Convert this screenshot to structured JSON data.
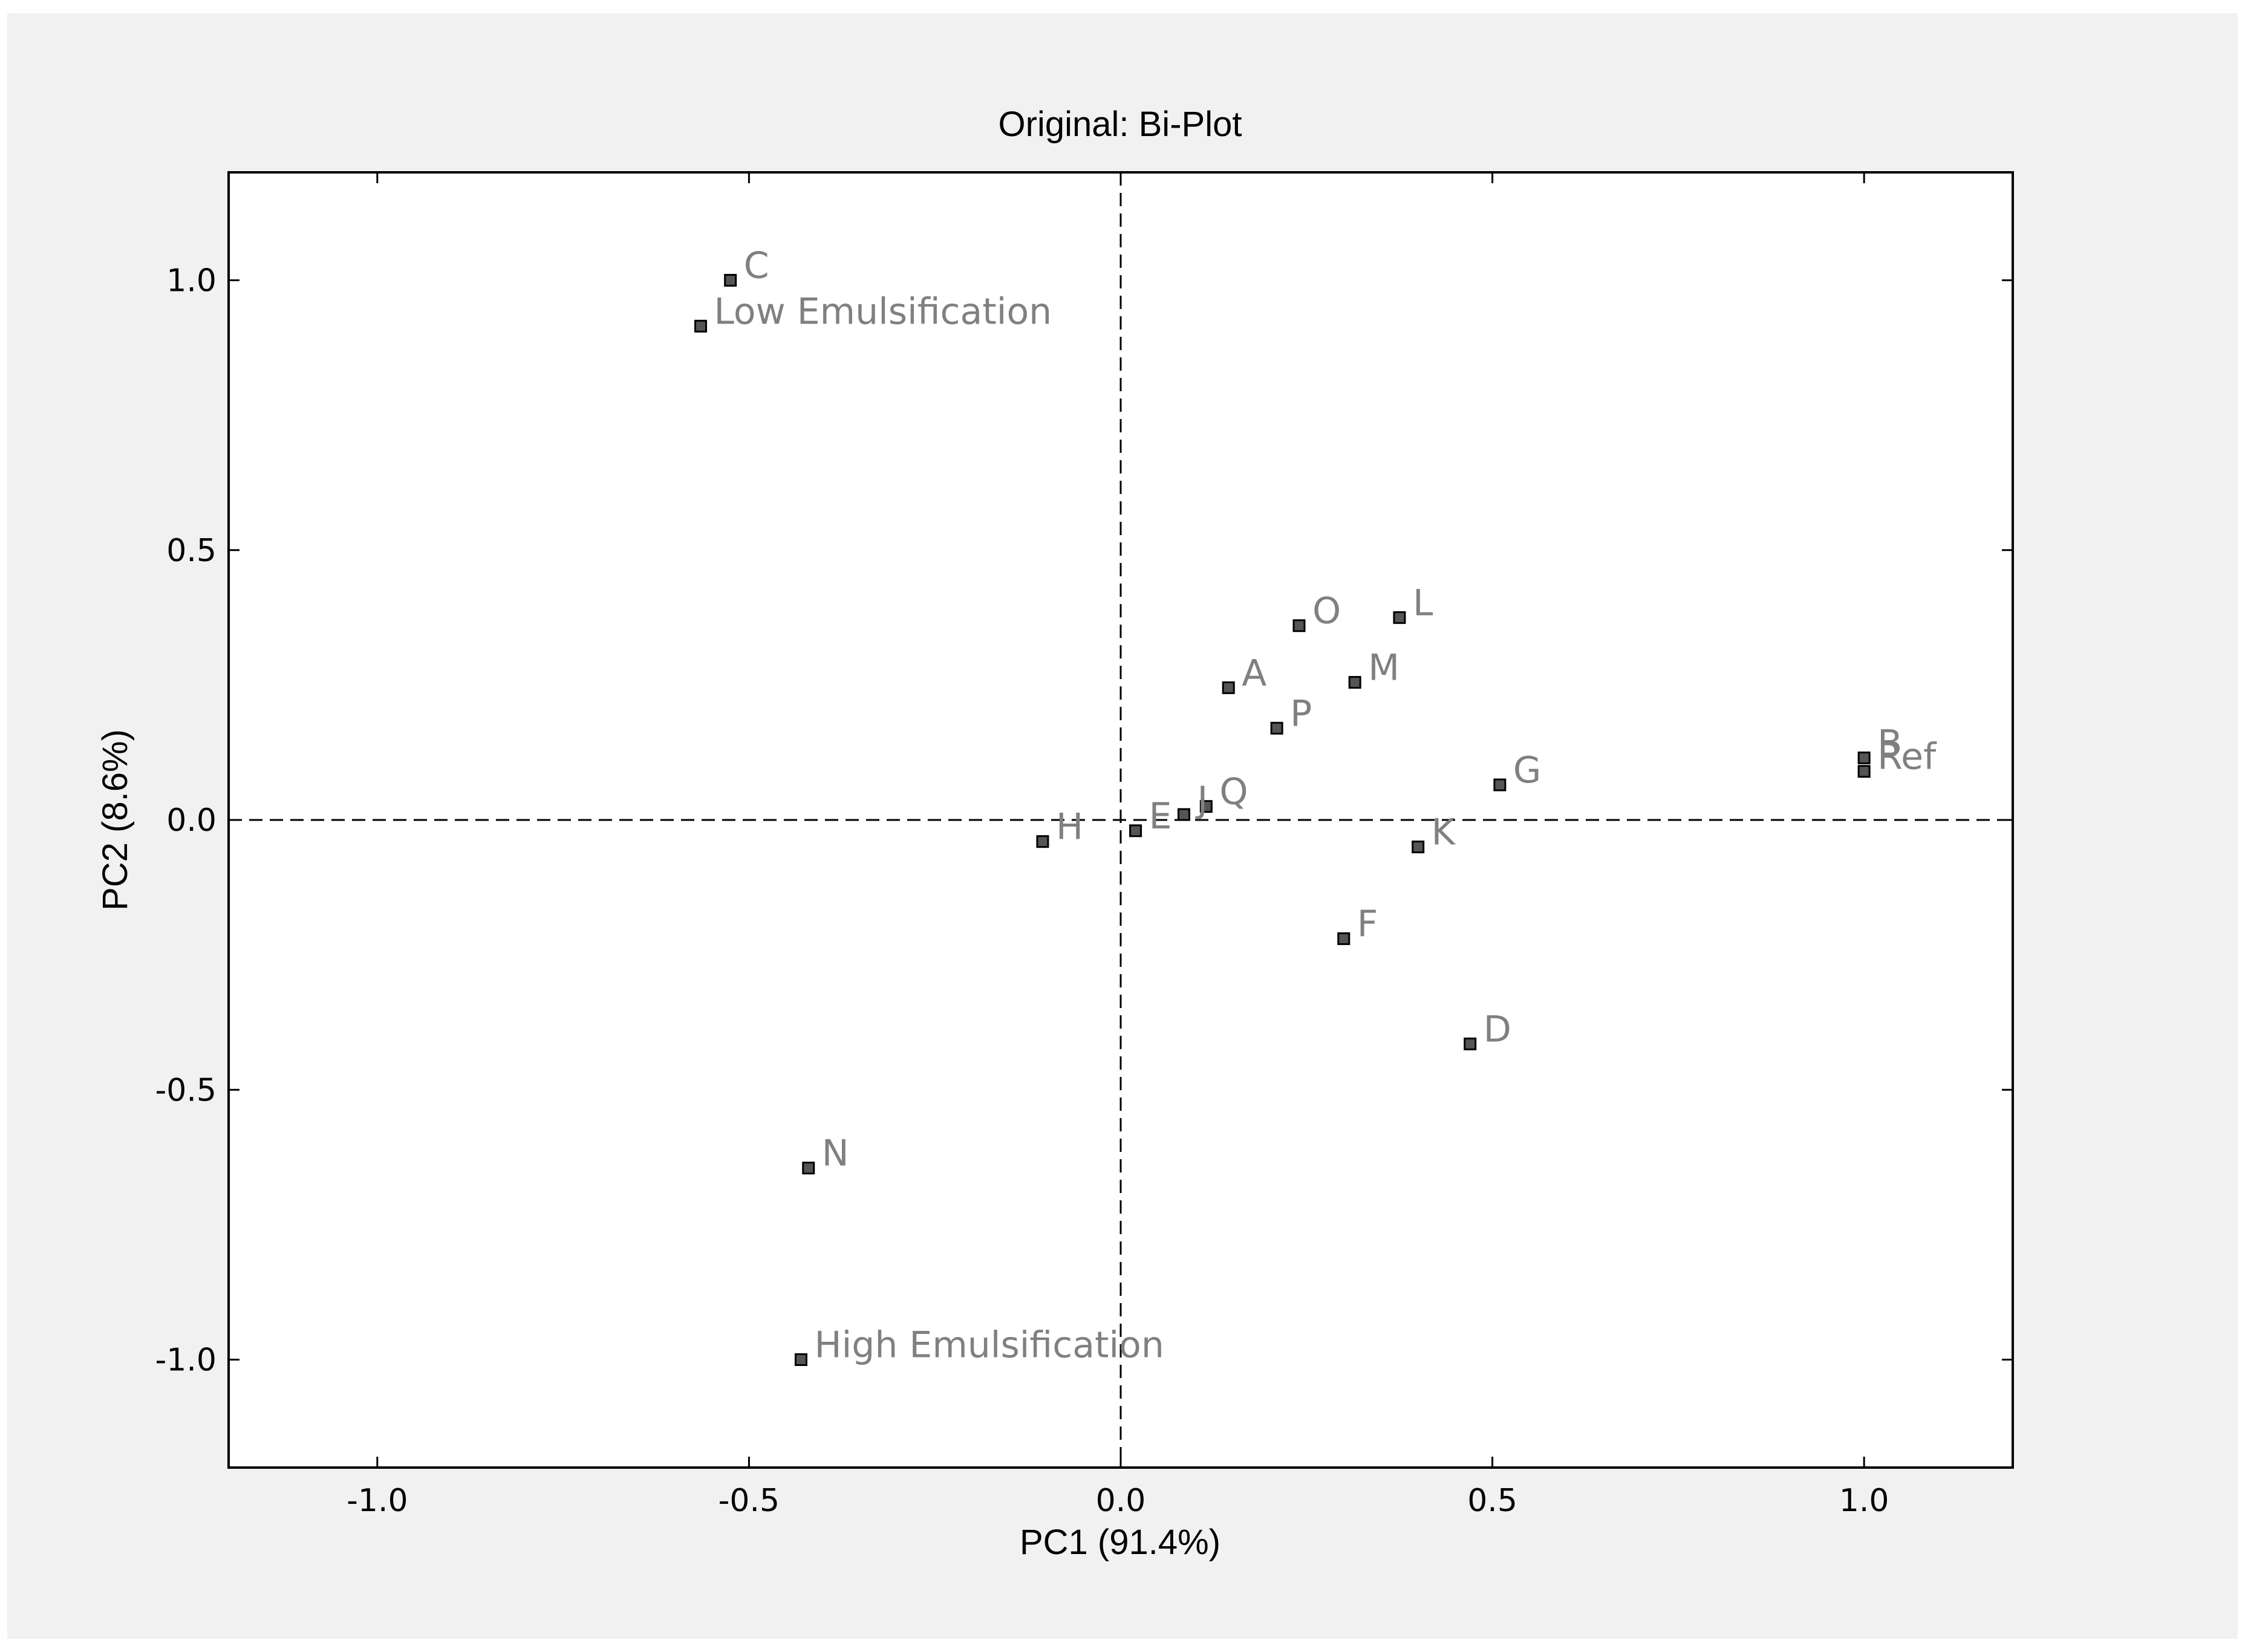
{
  "chart_data": {
    "type": "scatter",
    "title": "Original: Bi-Plot",
    "xlabel": "PC1 (91.4%)",
    "ylabel": "PC2 (8.6%)",
    "xlim": [
      -1.2,
      1.2
    ],
    "ylim": [
      -1.2,
      1.2
    ],
    "xticks": [
      -1.0,
      -0.5,
      0.0,
      0.5,
      1.0
    ],
    "yticks": [
      -1.0,
      -0.5,
      0.0,
      0.5,
      1.0
    ],
    "xtick_labels": [
      "-1.0",
      "-0.5",
      "0.0",
      "0.5",
      "1.0"
    ],
    "ytick_labels": [
      "-1.0",
      "-0.5",
      "0.0",
      "0.5",
      "1.0"
    ],
    "reference_lines": {
      "x": 0,
      "y": 0,
      "style": "dashed"
    },
    "grid": false,
    "marker": "square",
    "marker_color": "#555555",
    "label_color": "#808080",
    "points": [
      {
        "label": "C",
        "x": -0.525,
        "y": 1.0
      },
      {
        "label": "Low Emulsification",
        "x": -0.565,
        "y": 0.915
      },
      {
        "label": "O",
        "x": 0.24,
        "y": 0.36
      },
      {
        "label": "L",
        "x": 0.375,
        "y": 0.375
      },
      {
        "label": "A",
        "x": 0.145,
        "y": 0.245
      },
      {
        "label": "M",
        "x": 0.315,
        "y": 0.255
      },
      {
        "label": "P",
        "x": 0.21,
        "y": 0.17
      },
      {
        "label": "B",
        "x": 1.0,
        "y": 0.115
      },
      {
        "label": "Ref",
        "x": 1.0,
        "y": 0.09
      },
      {
        "label": "G",
        "x": 0.51,
        "y": 0.065
      },
      {
        "label": "Q",
        "x": 0.115,
        "y": 0.025
      },
      {
        "label": "J",
        "x": 0.085,
        "y": 0.01
      },
      {
        "label": "E",
        "x": 0.02,
        "y": -0.02
      },
      {
        "label": "H",
        "x": -0.105,
        "y": -0.04
      },
      {
        "label": "K",
        "x": 0.4,
        "y": -0.05
      },
      {
        "label": "F",
        "x": 0.3,
        "y": -0.22
      },
      {
        "label": "D",
        "x": 0.47,
        "y": -0.415
      },
      {
        "label": "N",
        "x": -0.42,
        "y": -0.645
      },
      {
        "label": "High Emulsification",
        "x": -0.43,
        "y": -1.0
      }
    ]
  }
}
